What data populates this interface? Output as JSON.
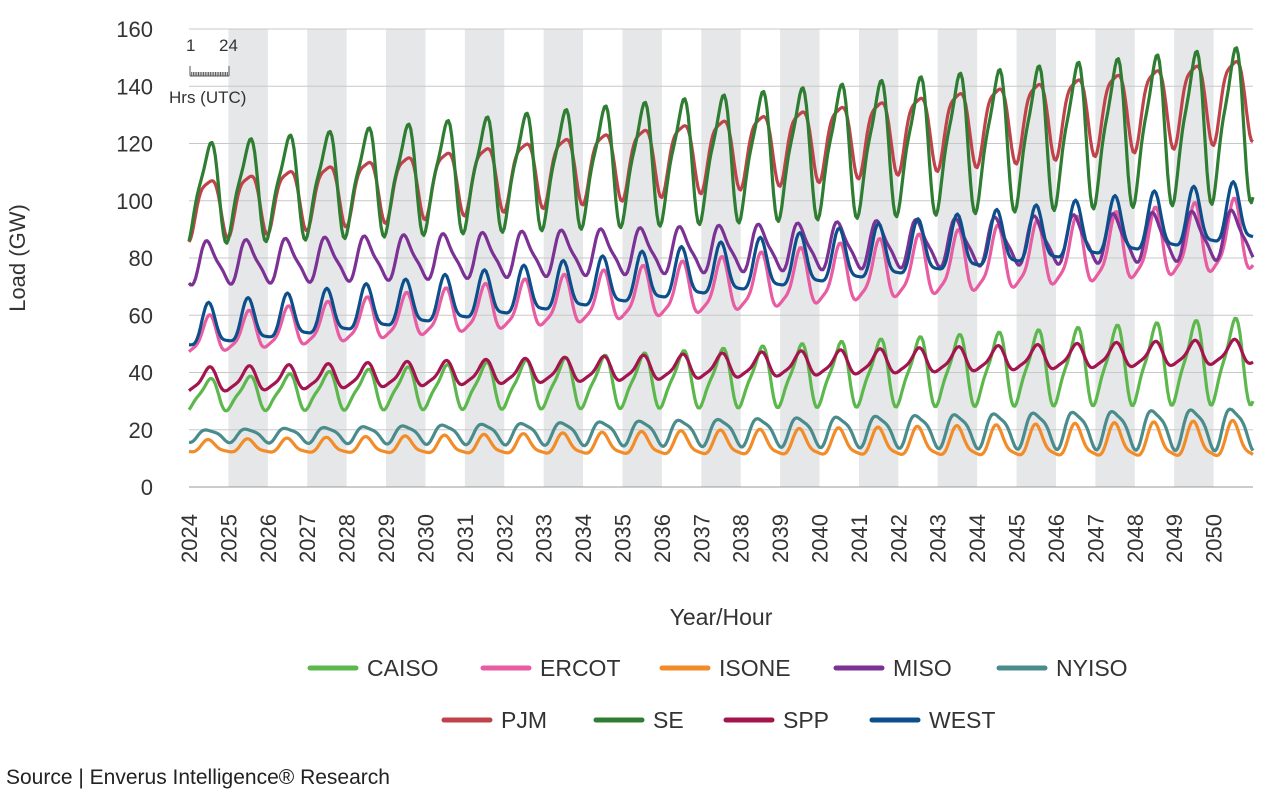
{
  "chart_data": {
    "type": "line",
    "xlabel": "Year/Hour",
    "ylabel": "Load (GW)",
    "ylim": [
      0,
      160
    ],
    "yticks": [
      0,
      20,
      40,
      60,
      80,
      100,
      120,
      140,
      160
    ],
    "xlim": [
      2024,
      2051
    ],
    "years": [
      "2024",
      "2025",
      "2026",
      "2027",
      "2028",
      "2029",
      "2030",
      "2031",
      "2032",
      "2033",
      "2034",
      "2035",
      "2036",
      "2037",
      "2038",
      "2039",
      "2040",
      "2041",
      "2042",
      "2043",
      "2044",
      "2045",
      "2046",
      "2047",
      "2048",
      "2049",
      "2050"
    ],
    "grid": "horizontal",
    "background_bands": "alternating years shaded",
    "inset_scale": {
      "start_label": "1",
      "end_label": "24",
      "caption": "Hrs (UTC)"
    },
    "legend_position": "bottom",
    "series": [
      {
        "name": "CAISO",
        "color": "#5cb84c",
        "base_start": 32,
        "base_end": 44,
        "amp_start": 5,
        "amp_end": 14
      },
      {
        "name": "ERCOT",
        "color": "#e85ca3",
        "base_start": 52,
        "base_end": 87,
        "amp_start": 6,
        "amp_end": 12
      },
      {
        "name": "ISONE",
        "color": "#f28c28",
        "base_start": 14,
        "base_end": 16,
        "amp_start": 2,
        "amp_end": 6
      },
      {
        "name": "MISO",
        "color": "#7b3294",
        "base_start": 78,
        "base_end": 88,
        "amp_start": 7,
        "amp_end": 8
      },
      {
        "name": "NYISO",
        "color": "#4a8c8c",
        "base_start": 18,
        "base_end": 21,
        "amp_start": 2,
        "amp_end": 7
      },
      {
        "name": "PJM",
        "color": "#c0434b",
        "base_start": 98,
        "base_end": 138,
        "amp_start": 10,
        "amp_end": 14
      },
      {
        "name": "SE",
        "color": "#2e7d32",
        "base_start": 103,
        "base_end": 128,
        "amp_start": 16,
        "amp_end": 25
      },
      {
        "name": "SPP",
        "color": "#a3154e",
        "base_start": 37,
        "base_end": 47,
        "amp_start": 4,
        "amp_end": 4
      },
      {
        "name": "WEST",
        "color": "#0d4f8b",
        "base_start": 55,
        "base_end": 95,
        "amp_start": 7,
        "amp_end": 10
      }
    ]
  },
  "source_text": "Source | Enverus Intelligence® Research"
}
